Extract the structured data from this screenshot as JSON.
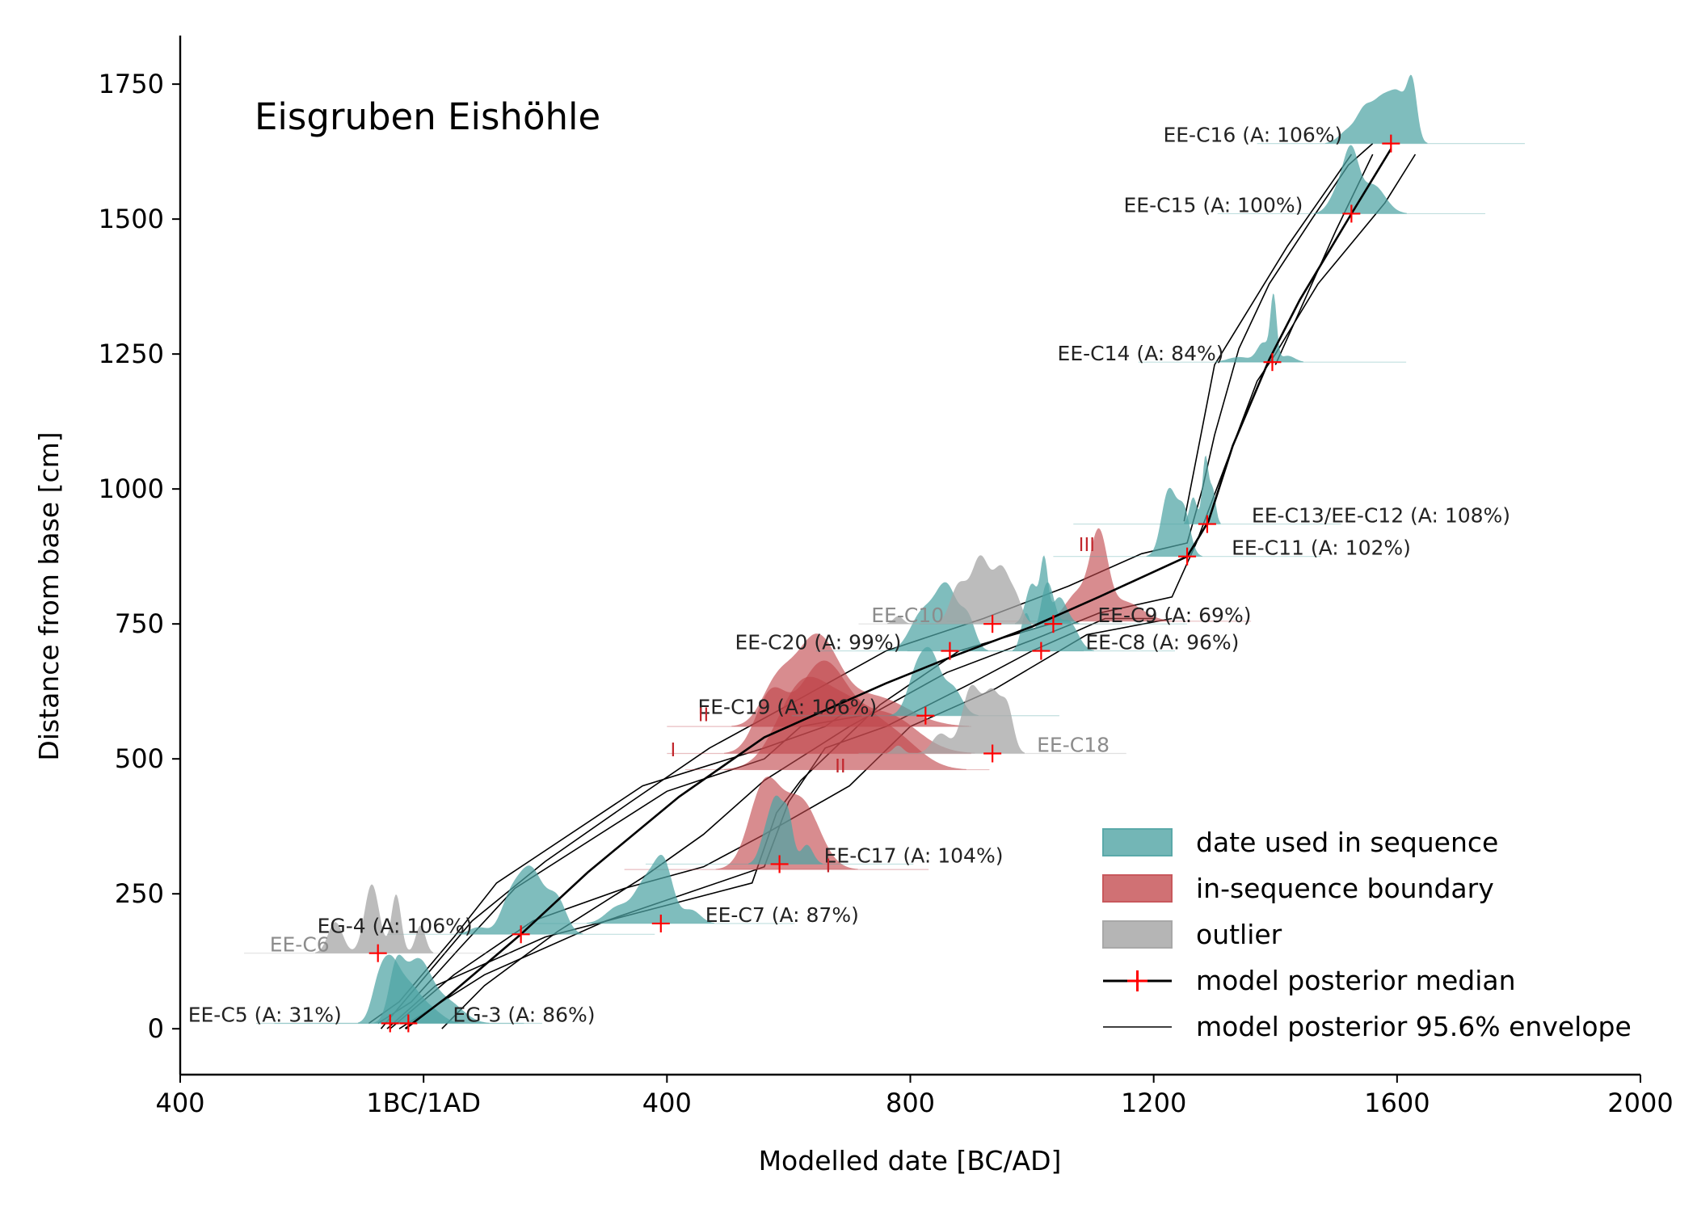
{
  "chart_data": {
    "type": "area",
    "title": "Eisgruben Eishöhle",
    "xlabel": "Modelled date [BC/AD]",
    "ylabel": "Distance from base [cm]",
    "xlim": [
      -400,
      2000
    ],
    "ylim": [
      -85,
      1840
    ],
    "xticks": [
      {
        "value": -400,
        "label": "400"
      },
      {
        "value": 0,
        "label": "1BC/1AD"
      },
      {
        "value": 400,
        "label": "400"
      },
      {
        "value": 800,
        "label": "800"
      },
      {
        "value": 1200,
        "label": "1200"
      },
      {
        "value": 1600,
        "label": "1600"
      },
      {
        "value": 2000,
        "label": "2000"
      }
    ],
    "yticks": [
      0,
      250,
      500,
      750,
      1000,
      1250,
      1500,
      1750
    ],
    "legend": {
      "position": "bottom-right",
      "entries": [
        {
          "kind": "patch",
          "label": "date used in sequence",
          "color": "#5aa9a9"
        },
        {
          "kind": "patch",
          "label": "in-sequence boundary",
          "color": "#c8585c"
        },
        {
          "kind": "patch",
          "label": "outlier",
          "color": "#a8a8a8"
        },
        {
          "kind": "median",
          "label": "model posterior median"
        },
        {
          "kind": "envelope",
          "label": "model posterior 95.6% envelope"
        }
      ]
    },
    "colors": {
      "sequence": "#4ea3a3",
      "boundary": "#c0454a",
      "outlier": "#a6a6a6",
      "median_marker": "#ff0000",
      "line": "#000000"
    },
    "dates": [
      {
        "label": "EE-C16  (A: 106%)",
        "category": "sequence",
        "depth": 1640,
        "median": 1590,
        "spread": 60,
        "height": 120,
        "label_side": "left",
        "peaks": [
          [
            1520,
            15,
            0.25
          ],
          [
            1545,
            12,
            0.45
          ],
          [
            1575,
            18,
            0.85
          ],
          [
            1605,
            14,
            0.75
          ],
          [
            1625,
            8,
            1.0
          ]
        ]
      },
      {
        "label": "EE-C15  (A: 100%)",
        "category": "sequence",
        "depth": 1510,
        "median": 1525,
        "spread": 60,
        "height": 120,
        "label_side": "left",
        "peaks": [
          [
            1505,
            15,
            0.45
          ],
          [
            1525,
            12,
            1.0
          ],
          [
            1560,
            20,
            0.55
          ]
        ]
      },
      {
        "label": "EE-C14  (A: 84%)",
        "category": "sequence",
        "depth": 1235,
        "median": 1395,
        "spread": 60,
        "height": 120,
        "label_side": "left",
        "peaks": [
          [
            1340,
            18,
            0.08
          ],
          [
            1380,
            10,
            0.3
          ],
          [
            1397,
            5,
            1.0
          ],
          [
            1420,
            12,
            0.1
          ]
        ]
      },
      {
        "label": "EE-C13/EE-C12  (A: 108%)",
        "category": "sequence",
        "depth": 935,
        "median": 1288,
        "spread": 60,
        "height": 120,
        "label_side": "right",
        "peaks": [
          [
            1265,
            6,
            0.4
          ],
          [
            1285,
            5,
            1.0
          ],
          [
            1297,
            5,
            0.5
          ]
        ]
      },
      {
        "label": "EE-C11  (A: 102%)",
        "category": "sequence",
        "depth": 875,
        "median": 1255,
        "spread": 60,
        "height": 120,
        "label_side": "right",
        "peaks": [
          [
            1225,
            12,
            0.75
          ],
          [
            1250,
            10,
            0.5
          ]
        ]
      },
      {
        "label": "EE-C9  (A: 69%)",
        "category": "sequence",
        "depth": 750,
        "median": 1035,
        "spread": 60,
        "height": 120,
        "label_side": "right",
        "peaks": [
          [
            1000,
            10,
            0.6
          ],
          [
            1020,
            6,
            0.9
          ],
          [
            1045,
            12,
            0.4
          ]
        ]
      },
      {
        "label": "EE-C8  (A: 96%)",
        "category": "sequence",
        "depth": 700,
        "median": 1015,
        "spread": 60,
        "height": 120,
        "label_side": "right",
        "peaks": [
          [
            990,
            8,
            0.25
          ],
          [
            1025,
            12,
            0.45
          ],
          [
            1060,
            15,
            0.2
          ]
        ]
      },
      {
        "label": "EE-C20  (A: 99%)",
        "category": "sequence",
        "depth": 700,
        "median": 865,
        "spread": 60,
        "height": 120,
        "label_side": "left",
        "peaks": [
          [
            820,
            20,
            0.45
          ],
          [
            860,
            18,
            0.75
          ],
          [
            895,
            12,
            0.35
          ]
        ]
      },
      {
        "label": "EE-C19  (A: 106%)",
        "category": "sequence",
        "depth": 580,
        "median": 825,
        "spread": 60,
        "height": 120,
        "label_side": "left",
        "peaks": [
          [
            810,
            15,
            0.6
          ],
          [
            835,
            15,
            0.8
          ],
          [
            870,
            15,
            0.4
          ]
        ]
      },
      {
        "label": "EE-C17  (A: 104%)",
        "category": "sequence",
        "depth": 305,
        "median": 585,
        "spread": 60,
        "height": 120,
        "label_side": "right",
        "peaks": [
          [
            560,
            10,
            0.3
          ],
          [
            580,
            12,
            1.0
          ],
          [
            600,
            8,
            0.6
          ],
          [
            630,
            10,
            0.3
          ]
        ]
      },
      {
        "label": "EE-C7  (A: 87%)",
        "category": "sequence",
        "depth": 195,
        "median": 390,
        "spread": 60,
        "height": 120,
        "label_side": "right",
        "peaks": [
          [
            320,
            20,
            0.25
          ],
          [
            365,
            18,
            0.6
          ],
          [
            395,
            15,
            0.85
          ],
          [
            440,
            15,
            0.2
          ]
        ]
      },
      {
        "label": "EG-4  (A: 106%)",
        "category": "sequence",
        "depth": 175,
        "median": 160,
        "spread": 60,
        "height": 120,
        "label_side": "left",
        "peaks": [
          [
            90,
            15,
            0.1
          ],
          [
            140,
            15,
            0.35
          ],
          [
            175,
            22,
            0.95
          ],
          [
            220,
            15,
            0.45
          ]
        ]
      },
      {
        "label": "EE-C5  (A: 31%)",
        "category": "sequence",
        "depth": 10,
        "median": -55,
        "spread": 60,
        "height": 120,
        "label_side": "left",
        "peaks": [
          [
            -75,
            12,
            0.5
          ],
          [
            -55,
            15,
            0.95
          ],
          [
            -25,
            18,
            0.6
          ],
          [
            10,
            20,
            0.25
          ]
        ]
      },
      {
        "label": "EG-3  (A: 86%)",
        "category": "sequence",
        "depth": 10,
        "median": -25,
        "spread": 60,
        "height": 120,
        "label_side": "right",
        "peaks": [
          [
            -45,
            12,
            0.35
          ],
          [
            -10,
            22,
            0.45
          ],
          [
            40,
            25,
            0.15
          ]
        ]
      },
      {
        "label": "EE-C10",
        "category": "outlier",
        "depth": 750,
        "median": 935,
        "spread": 60,
        "height": 120,
        "label_side": "left",
        "peaks": [
          [
            880,
            14,
            0.6
          ],
          [
            915,
            14,
            1.0
          ],
          [
            950,
            14,
            0.85
          ],
          [
            975,
            10,
            0.3
          ],
          [
            780,
            8,
            0.12
          ]
        ]
      },
      {
        "label": "EE-C18",
        "category": "outlier",
        "depth": 510,
        "median": 935,
        "spread": 60,
        "height": 120,
        "label_side": "right",
        "peaks": [
          [
            780,
            8,
            0.12
          ],
          [
            850,
            14,
            0.3
          ],
          [
            900,
            15,
            1.0
          ],
          [
            935,
            14,
            0.9
          ],
          [
            960,
            10,
            0.6
          ]
        ]
      },
      {
        "label": "EE-C6",
        "category": "outlier",
        "depth": 140,
        "median": -75,
        "spread": 60,
        "height": 120,
        "label_side": "left",
        "peaks": [
          [
            -145,
            12,
            0.45
          ],
          [
            -85,
            12,
            1.0
          ],
          [
            -45,
            8,
            0.85
          ],
          [
            -5,
            8,
            0.4
          ]
        ]
      }
    ],
    "boundaries": [
      {
        "label": "III",
        "depth": 755,
        "median": 1110,
        "peaks": [
          [
            1075,
            20,
            0.35
          ],
          [
            1110,
            14,
            1.0
          ],
          [
            1150,
            30,
            0.25
          ]
        ]
      },
      {
        "label": "II",
        "depth": 560,
        "median": 650,
        "peaks": [
          [
            580,
            25,
            0.45
          ],
          [
            645,
            35,
            1.0
          ],
          [
            740,
            55,
            0.35
          ]
        ]
      },
      {
        "label": "I",
        "depth": 510,
        "median": 650,
        "peaks": [
          [
            570,
            25,
            0.5
          ],
          [
            655,
            40,
            0.8
          ],
          [
            760,
            50,
            0.35
          ]
        ]
      },
      {
        "label": "II",
        "depth": 480,
        "median": 680,
        "peaks": [
          [
            620,
            40,
            0.45
          ],
          [
            700,
            45,
            0.35
          ],
          [
            780,
            40,
            0.15
          ]
        ]
      },
      {
        "label": "I",
        "depth": 295,
        "median": 580,
        "peaks": [
          [
            560,
            25,
            0.3
          ],
          [
            620,
            30,
            0.25
          ]
        ]
      }
    ],
    "roman_labels": [
      {
        "text": "III",
        "x": 1090,
        "y": 885
      },
      {
        "text": "II",
        "x": 460,
        "y": 570
      },
      {
        "text": "I",
        "x": 410,
        "y": 505
      },
      {
        "text": "II",
        "x": 685,
        "y": 475
      },
      {
        "text": "I",
        "x": 665,
        "y": 290
      }
    ],
    "median_curve": [
      [
        -30,
        0
      ],
      [
        40,
        60
      ],
      [
        160,
        175
      ],
      [
        270,
        290
      ],
      [
        420,
        430
      ],
      [
        560,
        540
      ],
      [
        640,
        580
      ],
      [
        760,
        640
      ],
      [
        870,
        690
      ],
      [
        1000,
        745
      ],
      [
        1110,
        800
      ],
      [
        1255,
        875
      ],
      [
        1290,
        940
      ],
      [
        1330,
        1080
      ],
      [
        1390,
        1240
      ],
      [
        1440,
        1350
      ],
      [
        1525,
        1510
      ],
      [
        1590,
        1630
      ]
    ],
    "envelopes": [
      [
        [
          -70,
          0
        ],
        [
          -10,
          80
        ],
        [
          80,
          200
        ],
        [
          200,
          310
        ],
        [
          340,
          420
        ],
        [
          470,
          520
        ],
        [
          600,
          600
        ],
        [
          760,
          700
        ],
        [
          920,
          760
        ],
        [
          1060,
          820
        ],
        [
          1180,
          880
        ],
        [
          1255,
          900
        ],
        [
          1280,
          1000
        ],
        [
          1300,
          1100
        ],
        [
          1340,
          1260
        ],
        [
          1390,
          1380
        ],
        [
          1460,
          1500
        ],
        [
          1520,
          1600
        ],
        [
          1560,
          1640
        ]
      ],
      [
        [
          30,
          0
        ],
        [
          100,
          80
        ],
        [
          220,
          180
        ],
        [
          360,
          280
        ],
        [
          460,
          360
        ],
        [
          560,
          460
        ],
        [
          700,
          560
        ],
        [
          860,
          660
        ],
        [
          1000,
          720
        ],
        [
          1110,
          770
        ],
        [
          1230,
          800
        ],
        [
          1270,
          900
        ],
        [
          1320,
          1050
        ],
        [
          1370,
          1200
        ],
        [
          1400,
          1250
        ],
        [
          1470,
          1380
        ],
        [
          1580,
          1530
        ],
        [
          1630,
          1620
        ]
      ],
      [
        [
          -55,
          0
        ],
        [
          50,
          100
        ],
        [
          180,
          200
        ],
        [
          330,
          260
        ],
        [
          460,
          300
        ],
        [
          560,
          360
        ],
        [
          700,
          450
        ],
        [
          800,
          560
        ],
        [
          940,
          630
        ],
        [
          1090,
          730
        ],
        [
          1230,
          760
        ]
      ],
      [
        [
          -60,
          0
        ],
        [
          20,
          80
        ],
        [
          200,
          170
        ],
        [
          540,
          270
        ],
        [
          580,
          400
        ],
        [
          620,
          460
        ],
        [
          750,
          600
        ],
        [
          880,
          700
        ],
        [
          1030,
          750
        ]
      ],
      [
        [
          -40,
          0
        ],
        [
          100,
          100
        ],
        [
          300,
          200
        ],
        [
          560,
          300
        ],
        [
          600,
          420
        ],
        [
          660,
          520
        ],
        [
          760,
          560
        ],
        [
          900,
          640
        ],
        [
          1000,
          700
        ],
        [
          1120,
          760
        ],
        [
          1200,
          760
        ]
      ],
      [
        [
          -75,
          10
        ],
        [
          -20,
          50
        ],
        [
          60,
          150
        ],
        [
          150,
          260
        ],
        [
          400,
          440
        ],
        [
          560,
          500
        ],
        [
          620,
          560
        ],
        [
          720,
          580
        ]
      ],
      [
        [
          -90,
          10
        ],
        [
          -40,
          50
        ],
        [
          50,
          170
        ],
        [
          120,
          270
        ],
        [
          360,
          450
        ],
        [
          560,
          520
        ],
        [
          660,
          560
        ],
        [
          710,
          600
        ]
      ],
      [
        [
          1400,
          1230
        ],
        [
          1500,
          1480
        ],
        [
          1560,
          1620
        ]
      ],
      [
        [
          1250,
          940
        ],
        [
          1300,
          1230
        ],
        [
          1420,
          1450
        ],
        [
          1525,
          1620
        ]
      ]
    ]
  }
}
